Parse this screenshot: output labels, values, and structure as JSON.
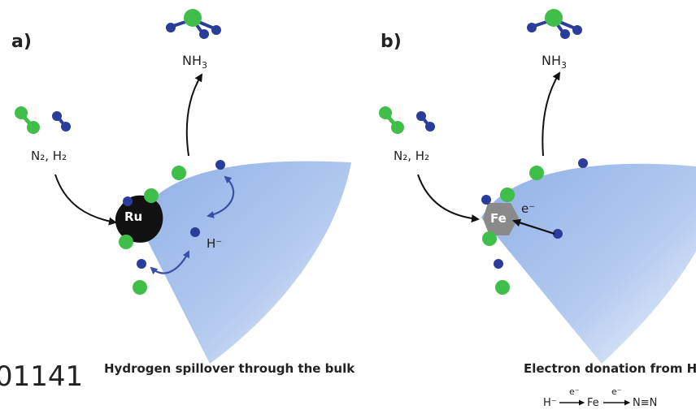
{
  "panel_a": {
    "label": "a)",
    "reactants": "N₂, H₂",
    "product": "NH",
    "product_sub": "3",
    "catalyst": "Ru",
    "hydride": "H⁻",
    "caption": "Hydrogen spillover through the bulk"
  },
  "panel_b": {
    "label": "b)",
    "reactants": "N₂, H₂",
    "product": "NH",
    "product_sub": "3",
    "catalyst": "Fe",
    "electron": "e⁻",
    "caption": "Electron donation from H⁻",
    "equation": {
      "hydride": "H⁻",
      "e1": "e⁻",
      "metal": "Fe",
      "e2": "e⁻",
      "nitrogen": "N≡N"
    }
  },
  "stray_text": "01141",
  "colors": {
    "support_blue": "#a9c3ec",
    "nitrogen_blue": "#2a3d9a",
    "hydrogen_green": "#3fbf4a",
    "ru_black": "#111111",
    "fe_gray": "#8a8a8a",
    "arrow_blue": "#3a4fa8"
  }
}
